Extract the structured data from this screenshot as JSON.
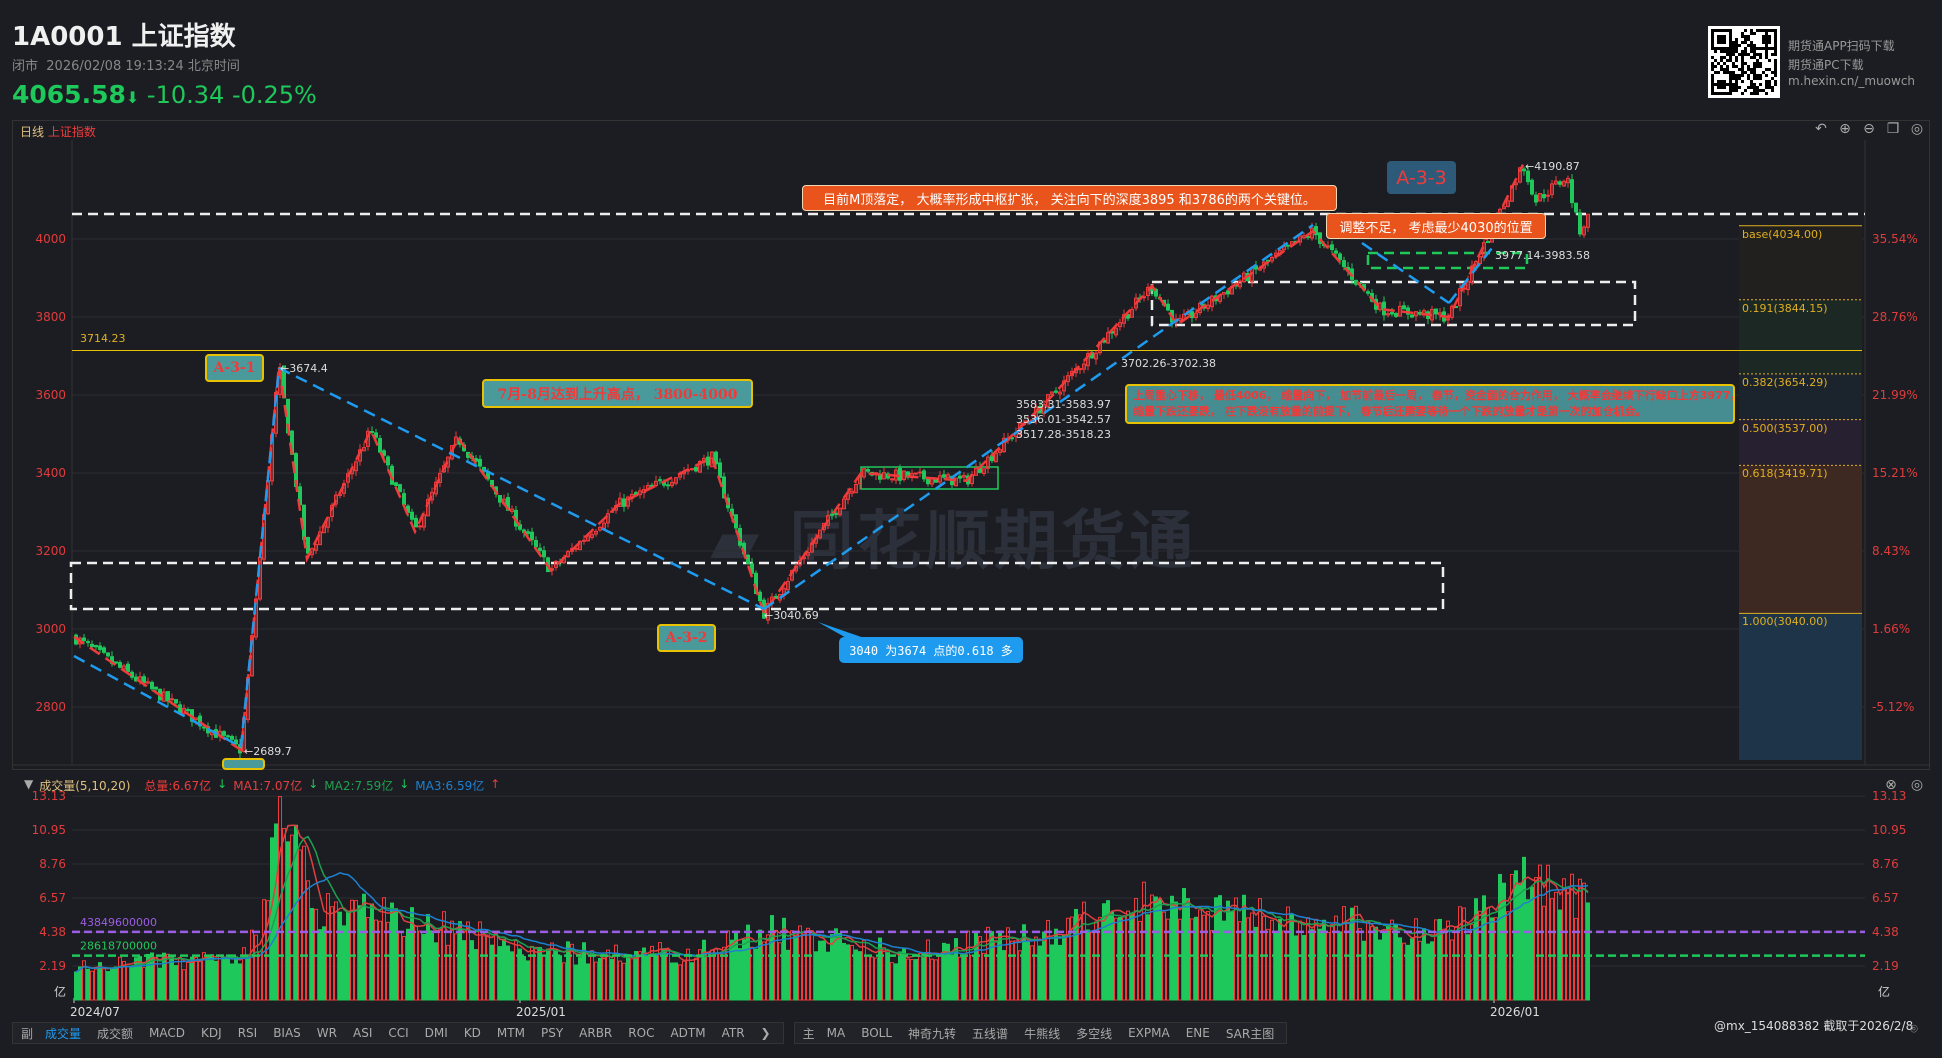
{
  "header": {
    "title": "1A0001 上证指数",
    "status": "闭市",
    "datetime": "2026/02/08 19:13:24 北京时间",
    "last": "4065.58",
    "arrow": "⬇",
    "change": "-10.34",
    "pct": "-0.25%"
  },
  "promo": {
    "line1": "期货通APP扫码下载",
    "line2": "期货通PC下载",
    "line3": "m.hexin.cn/_muowch"
  },
  "panel": {
    "period": "日线",
    "name": "上证指数",
    "icons": [
      "undo-icon",
      "zoom-in-icon",
      "zoom-out-icon",
      "layout-icon",
      "settings-icon"
    ]
  },
  "colors": {
    "up": "#ef3b3b",
    "down": "#1ec85a",
    "bg": "#1c1d22",
    "fib": "#e0b020"
  },
  "chart_data": {
    "type": "candlestick",
    "price_ticks": [
      4000,
      3800,
      3600,
      3400,
      3200,
      3000,
      2800
    ],
    "pct_ticks": [
      "35.54%",
      "28.76%",
      "21.99%",
      "15.21%",
      "8.43%",
      "1.66%",
      "-5.12%"
    ],
    "date_ticks": [
      "2024/07",
      "2025/01",
      "2026/01"
    ],
    "pivots": [
      [
        "2024/07",
        2980
      ],
      [
        "2024/09",
        2689.7
      ],
      [
        "2024/10",
        3674.4
      ],
      [
        "2024/10",
        3180
      ],
      [
        "2024/11",
        3510
      ],
      [
        "2024/12",
        3250
      ],
      [
        "2024/12",
        3490
      ],
      [
        "2025/01",
        3150
      ],
      [
        "2025/02",
        3320
      ],
      [
        "2025/03",
        3440
      ],
      [
        "2025/04",
        3040.69
      ],
      [
        "2025/05",
        3400
      ],
      [
        "2025/06",
        3380
      ],
      [
        "2025/07",
        3600
      ],
      [
        "2025/08",
        3880
      ],
      [
        "2025/09",
        3780
      ],
      [
        "2025/11",
        4020
      ],
      [
        "2025/11",
        3820
      ],
      [
        "2025/12",
        3800
      ],
      [
        "2026/01",
        4190.87
      ],
      [
        "2026/01",
        4100
      ],
      [
        "2026/01",
        4160
      ],
      [
        "2026/02",
        4020
      ],
      [
        "2026/02",
        4065.58
      ]
    ],
    "hline": {
      "label": "3714.23",
      "value": 3714.23
    },
    "labels": {
      "high1": "←3674.4",
      "low1": "←2689.7",
      "low2": "←3040.69",
      "high2": "←4190.87",
      "gap1": "3702.26-3702.38",
      "gap2": "3583.31-3583.97",
      "gap3": "3536.01-3542.57",
      "gap4": "3517.28-3518.23",
      "gap5": "3977.14-3983.58"
    },
    "fib": [
      {
        "label": "base(4034.00)",
        "value": 4034
      },
      {
        "label": "0.191(3844.15)",
        "value": 3844.15
      },
      {
        "label": "0.382(3654.29)",
        "value": 3654.29
      },
      {
        "label": "0.500(3537.00)",
        "value": 3537
      },
      {
        "label": "0.618(3419.71)",
        "value": 3419.71
      },
      {
        "label": "1.000(3040.00)",
        "value": 3040
      }
    ]
  },
  "annotations": {
    "a1": "目前M顶落定， 大概率形成中枢扩张， 关注向下的深度3895 和3786的两个关键位。",
    "a2": "A-3-3",
    "a3": "调整不足， 考虑最少4030的位置",
    "a4": "A-3-1",
    "a5": "7月-8月达到上升高点， 3800-4000",
    "a6": "A-3-2",
    "a7": "3040 为3674 点的0.618 多",
    "a8": "上周重心下移， 最低4006， 缩量向下， 加节前最后一周， 春节，资金面的合力作用， 大概率会继续下行缺口上方3977，",
    "a9": "缩量下跌还要跌， 在下跌没有放量的前提下， 春节后还需要等待一个下跌的放量才是第一次的加仓机会。"
  },
  "watermark": "同花顺期货通",
  "volume": {
    "title": "成交量(5,10,20)",
    "total": "总量:6.67亿",
    "ma1": "MA1:7.07亿",
    "ma2": "MA2:7.59亿",
    "ma3": "MA3:6.59亿",
    "ticks": [
      "13.13",
      "10.95",
      "8.76",
      "6.57",
      "4.38",
      "2.19"
    ],
    "unit": "亿",
    "line1": "43849600000",
    "line2": "28618700000"
  },
  "toolbar": {
    "left": [
      "成交量",
      "成交额",
      "MACD",
      "KDJ",
      "RSI",
      "BIAS",
      "WR",
      "ASI",
      "CCI",
      "DMI",
      "KD",
      "MTM",
      "PSY",
      "ARBR",
      "ROC",
      "ADTM",
      "ATR"
    ],
    "more": "❯",
    "main": "主",
    "right": [
      "MA",
      "BOLL",
      "神奇九转",
      "五线谱",
      "牛熊线",
      "多空线",
      "EXPMA",
      "ENE",
      "SAR主图"
    ]
  },
  "credit": "@mx_154088382 截取于2026/2/8"
}
